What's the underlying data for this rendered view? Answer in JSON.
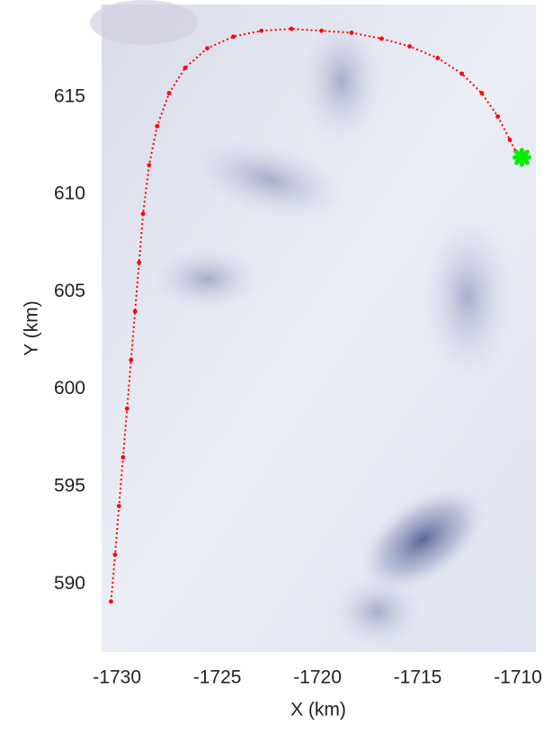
{
  "chart_data": {
    "type": "scatter",
    "xlabel": "X (km)",
    "ylabel": "Y (km)",
    "xlim": [
      -1730.77,
      -1709.1
    ],
    "ylim": [
      586.5,
      619.75
    ],
    "xticks": [
      -1730,
      -1725,
      -1720,
      -1715,
      -1710
    ],
    "yticks": [
      590,
      595,
      600,
      605,
      610,
      615
    ],
    "series": [
      {
        "color": "#ff0000",
        "x": [
          -1730.3,
          -1730.1,
          -1729.9,
          -1729.7,
          -1729.5,
          -1729.3,
          -1729.1,
          -1728.9,
          -1728.7,
          -1728.4,
          -1728.0,
          -1727.4,
          -1726.6,
          -1725.5,
          -1724.2,
          -1722.8,
          -1721.3,
          -1719.8,
          -1718.3,
          -1716.8,
          -1715.4,
          -1714.0,
          -1712.8,
          -1711.8,
          -1711.0,
          -1710.4,
          -1710.1
        ],
        "y": [
          589.1,
          591.5,
          594.0,
          596.5,
          599.0,
          601.5,
          604.0,
          606.5,
          609.0,
          611.5,
          613.5,
          615.2,
          616.5,
          617.5,
          618.1,
          618.4,
          618.5,
          618.4,
          618.3,
          618.0,
          617.6,
          617.0,
          616.2,
          615.2,
          614.0,
          612.8,
          612.2
        ]
      },
      {
        "color": "#00ee00",
        "x": [
          -1709.8
        ],
        "y": [
          611.9
        ]
      }
    ]
  }
}
